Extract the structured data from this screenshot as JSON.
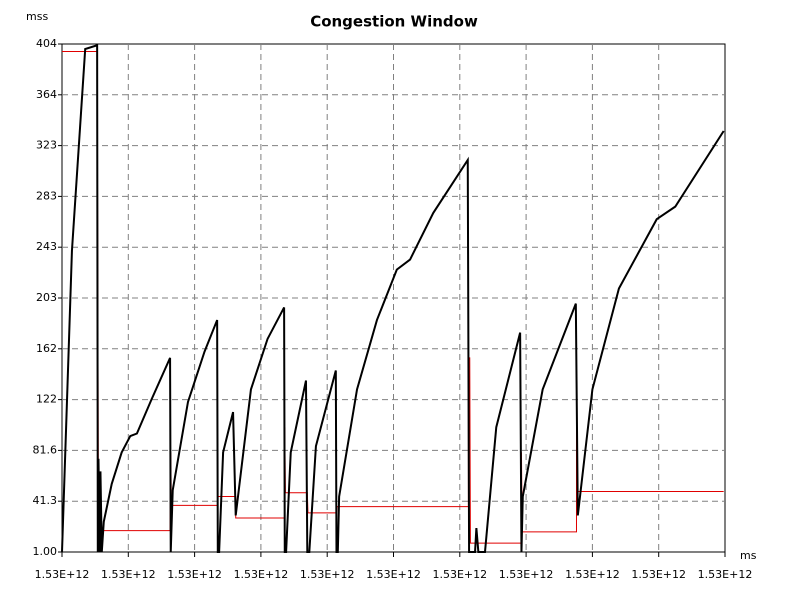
{
  "chart_data": {
    "type": "line",
    "title": "Congestion Window",
    "y_label": "mss",
    "x_label": "ms",
    "xlim": [
      1530000000000,
      1530000100000
    ],
    "xticks": [
      {
        "value": 1530000000000,
        "label": "1.53E+12"
      },
      {
        "value": 1530000010000,
        "label": "1.53E+12"
      },
      {
        "value": 1530000020000,
        "label": "1.53E+12"
      },
      {
        "value": 1530000030000,
        "label": "1.53E+12"
      },
      {
        "value": 1530000040000,
        "label": "1.53E+12"
      },
      {
        "value": 1530000050000,
        "label": "1.53E+12"
      },
      {
        "value": 1530000060000,
        "label": "1.53E+12"
      },
      {
        "value": 1530000070000,
        "label": "1.53E+12"
      },
      {
        "value": 1530000080000,
        "label": "1.53E+12"
      },
      {
        "value": 1530000090000,
        "label": "1.53E+12"
      },
      {
        "value": 1530000100000,
        "label": "1.53E+12"
      }
    ],
    "ylim": [
      1,
      404
    ],
    "yticks": [
      {
        "value": 1,
        "label": "1.00"
      },
      41.3,
      81.6,
      {
        "value": 121.9,
        "label": "122"
      },
      {
        "value": 162.2,
        "label": "162"
      },
      {
        "value": 202.5,
        "label": "203"
      },
      {
        "value": 242.8,
        "label": "243"
      },
      {
        "value": 283.1,
        "label": "283"
      },
      {
        "value": 323.4,
        "label": "323"
      },
      {
        "value": 363.7,
        "label": "364"
      },
      404
    ],
    "grid": true,
    "series": [
      {
        "color": "#000000",
        "x": [
          1530000000000,
          1530000001500,
          1530000003500,
          1530000005300,
          1530000005400,
          1530000005500,
          1530000005700,
          1530000005800,
          1530000006000,
          1530000006300,
          1530000007500,
          1530000009000,
          1530000010300,
          1530000011300,
          1530000013500,
          1530000016300,
          1530000016400,
          1530000016700,
          1530000019000,
          1530000021500,
          1530000023400,
          1530000023500,
          1530000023700,
          1530000024300,
          1530000025800,
          1530000026200,
          1530000028500,
          1530000031000,
          1530000033500,
          1530000033600,
          1530000033800,
          1530000034500,
          1530000036800,
          1530000037000,
          1530000037300,
          1530000038300,
          1530000041300,
          1530000041400,
          1530000041600,
          1530000041800,
          1530000044500,
          1530000047500,
          1530000050500,
          1530000052500,
          1530000056000,
          1530000061200,
          1530000061400,
          1530000062300,
          1530000062500,
          1530000062800,
          1530000063800,
          1530000065500,
          1530000069100,
          1530000069300,
          1530000069500,
          1530000072500,
          1530000077500,
          1530000077800,
          1530000080000,
          1530000084000,
          1530000089700,
          1530000092500,
          1530000099800
        ],
        "values": [
          1,
          240,
          400,
          403,
          1,
          75,
          1,
          65,
          1,
          25,
          55,
          80,
          93,
          95,
          122,
          155,
          1,
          50,
          120,
          160,
          185,
          1,
          1,
          80,
          112,
          30,
          130,
          170,
          195,
          1,
          1,
          80,
          137,
          1,
          1,
          85,
          145,
          1,
          1,
          45,
          130,
          185,
          225,
          233,
          270,
          312,
          1,
          1,
          20,
          1,
          1,
          100,
          175,
          1,
          45,
          130,
          198,
          30,
          130,
          210,
          265,
          275,
          335
        ]
      },
      {
        "color": "#e00000",
        "x": [
          1530000000000,
          1530000005300,
          1530000005500,
          1530000016300,
          1530000016400,
          1530000016500,
          1530000023500,
          1530000023500,
          1530000026200,
          1530000026200,
          1530000033600,
          1530000033600,
          1530000033700,
          1530000037000,
          1530000037100,
          1530000041400,
          1530000041500,
          1530000061300,
          1530000061300,
          1530000061500,
          1530000061600,
          1530000069300,
          1530000069300,
          1530000069400,
          1530000077600,
          1530000077600,
          1530000077700,
          1530000099800
        ],
        "values": [
          398,
          398,
          18,
          18,
          80,
          38,
          38,
          45,
          45,
          28,
          28,
          100,
          48,
          48,
          32,
          32,
          37,
          37,
          155,
          155,
          8,
          8,
          80,
          17,
          17,
          100,
          49,
          49
        ]
      }
    ]
  }
}
